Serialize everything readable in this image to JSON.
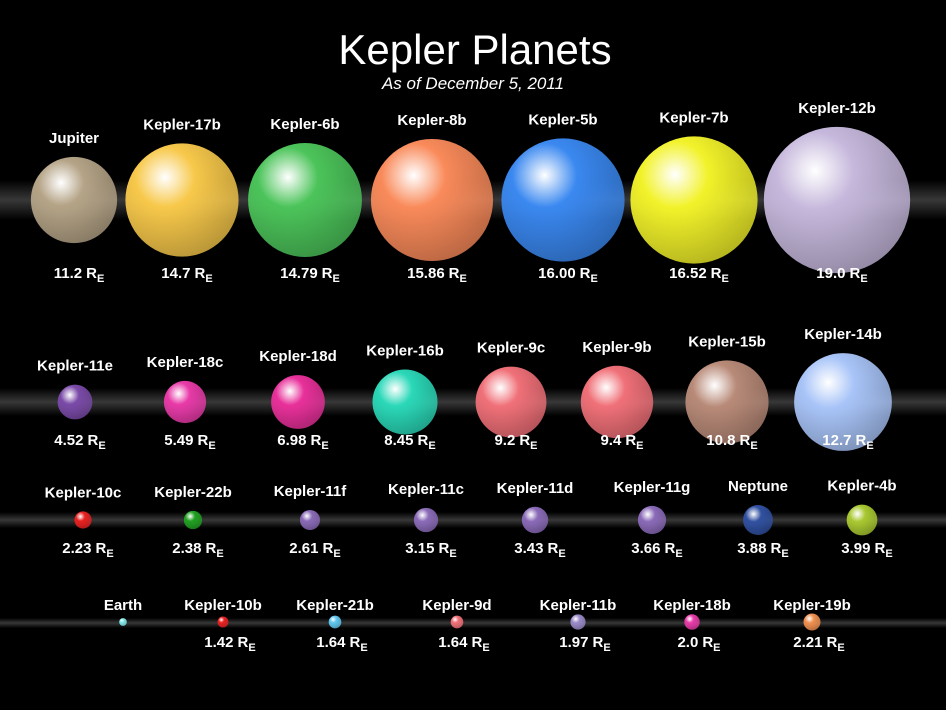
{
  "header": {
    "title": "Kepler Planets",
    "subtitle": "As of December 5, 2011"
  },
  "unit": "R",
  "unit_subscript": "E",
  "rows": [
    [
      {
        "name": "Jupiter",
        "radius": 11.2,
        "radius_label": "11.2",
        "color": "#b5a487"
      },
      {
        "name": "Kepler-17b",
        "radius": 14.7,
        "radius_label": "14.7",
        "color": "#f7c84a"
      },
      {
        "name": "Kepler-6b",
        "radius": 14.79,
        "radius_label": "14.79",
        "color": "#4cc45a"
      },
      {
        "name": "Kepler-8b",
        "radius": 15.86,
        "radius_label": "15.86",
        "color": "#f98a5a"
      },
      {
        "name": "Kepler-5b",
        "radius": 16.0,
        "radius_label": "16.00",
        "color": "#3a88f0"
      },
      {
        "name": "Kepler-7b",
        "radius": 16.52,
        "radius_label": "16.52",
        "color": "#f2f22a"
      },
      {
        "name": "Kepler-12b",
        "radius": 19.0,
        "radius_label": "19.0",
        "color": "#c6b8dc"
      }
    ],
    [
      {
        "name": "Kepler-11e",
        "radius": 4.52,
        "radius_label": "4.52",
        "color": "#7a4aa8"
      },
      {
        "name": "Kepler-18c",
        "radius": 5.49,
        "radius_label": "5.49",
        "color": "#e83aa8"
      },
      {
        "name": "Kepler-18d",
        "radius": 6.98,
        "radius_label": "6.98",
        "color": "#e8309a"
      },
      {
        "name": "Kepler-16b",
        "radius": 8.45,
        "radius_label": "8.45",
        "color": "#2ad8b8"
      },
      {
        "name": "Kepler-9c",
        "radius": 9.2,
        "radius_label": "9.2",
        "color": "#f07078"
      },
      {
        "name": "Kepler-9b",
        "radius": 9.4,
        "radius_label": "9.4",
        "color": "#f07078"
      },
      {
        "name": "Kepler-15b",
        "radius": 10.8,
        "radius_label": "10.8",
        "color": "#b88a78"
      },
      {
        "name": "Kepler-14b",
        "radius": 12.7,
        "radius_label": "12.7",
        "color": "#a8c4f8"
      }
    ],
    [
      {
        "name": "Kepler-10c",
        "radius": 2.23,
        "radius_label": "2.23",
        "color": "#e82020"
      },
      {
        "name": "Kepler-22b",
        "radius": 2.38,
        "radius_label": "2.38",
        "color": "#20a020"
      },
      {
        "name": "Kepler-11f",
        "radius": 2.61,
        "radius_label": "2.61",
        "color": "#8a6ab8"
      },
      {
        "name": "Kepler-11c",
        "radius": 3.15,
        "radius_label": "3.15",
        "color": "#8a6ab8"
      },
      {
        "name": "Kepler-11d",
        "radius": 3.43,
        "radius_label": "3.43",
        "color": "#8a6ab8"
      },
      {
        "name": "Kepler-11g",
        "radius": 3.66,
        "radius_label": "3.66",
        "color": "#8a6ab8"
      },
      {
        "name": "Neptune",
        "radius": 3.88,
        "radius_label": "3.88",
        "color": "#3050a0"
      },
      {
        "name": "Kepler-4b",
        "radius": 3.99,
        "radius_label": "3.99",
        "color": "#a8c830"
      }
    ],
    [
      {
        "name": "Earth",
        "radius": 1,
        "color": "#80e8e8"
      },
      {
        "name": "Kepler-10b",
        "radius": 1.42,
        "radius_label": "1.42",
        "color": "#e82020"
      },
      {
        "name": "Kepler-21b",
        "radius": 1.64,
        "radius_label": "1.64",
        "color": "#60c8f0"
      },
      {
        "name": "Kepler-9d",
        "radius": 1.64,
        "radius_label": "1.64",
        "color": "#f07078"
      },
      {
        "name": "Kepler-11b",
        "radius": 1.97,
        "radius_label": "1.97",
        "color": "#9a8ac8"
      },
      {
        "name": "Kepler-18b",
        "radius": 2.0,
        "radius_label": "2.0",
        "color": "#e83aa8"
      },
      {
        "name": "Kepler-19b",
        "radius": 2.21,
        "radius_label": "2.21",
        "color": "#f09050"
      }
    ]
  ]
}
